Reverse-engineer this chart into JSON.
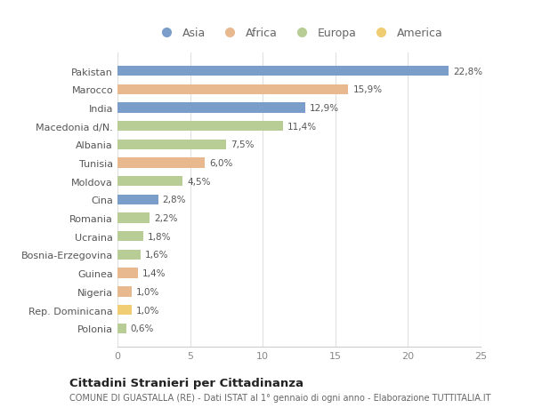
{
  "countries": [
    "Pakistan",
    "Marocco",
    "India",
    "Macedonia d/N.",
    "Albania",
    "Tunisia",
    "Moldova",
    "Cina",
    "Romania",
    "Ucraina",
    "Bosnia-Erzegovina",
    "Guinea",
    "Nigeria",
    "Rep. Dominicana",
    "Polonia"
  ],
  "values": [
    22.8,
    15.9,
    12.9,
    11.4,
    7.5,
    6.0,
    4.5,
    2.8,
    2.2,
    1.8,
    1.6,
    1.4,
    1.0,
    1.0,
    0.6
  ],
  "labels": [
    "22,8%",
    "15,9%",
    "12,9%",
    "11,4%",
    "7,5%",
    "6,0%",
    "4,5%",
    "2,8%",
    "2,2%",
    "1,8%",
    "1,6%",
    "1,4%",
    "1,0%",
    "1,0%",
    "0,6%"
  ],
  "continents": [
    "Asia",
    "Africa",
    "Asia",
    "Europa",
    "Europa",
    "Africa",
    "Europa",
    "Asia",
    "Europa",
    "Europa",
    "Europa",
    "Africa",
    "Africa",
    "America",
    "Europa"
  ],
  "colors": {
    "Asia": "#7b9dc9",
    "Africa": "#e8b88e",
    "Europa": "#b8cc96",
    "America": "#f0cc72"
  },
  "title": "Cittadini Stranieri per Cittadinanza",
  "subtitle": "COMUNE DI GUASTALLA (RE) - Dati ISTAT al 1° gennaio di ogni anno - Elaborazione TUTTITALIA.IT",
  "xlim": [
    0,
    25
  ],
  "xticks": [
    0,
    5,
    10,
    15,
    20,
    25
  ],
  "background_color": "#ffffff",
  "bar_height": 0.55,
  "grid_color": "#e0e0e0",
  "legend_order": [
    "Asia",
    "Africa",
    "Europa",
    "America"
  ]
}
